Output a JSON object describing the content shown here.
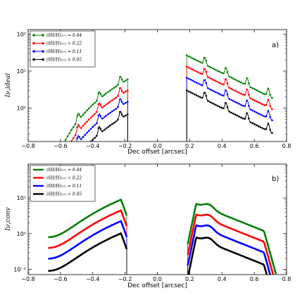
{
  "chart_data": [
    {
      "type": "line",
      "panel_label": "a)",
      "xlabel": "Dec offset [arcsec]",
      "ylabel": "Iν,ideal",
      "xlim": [
        -0.8,
        0.8
      ],
      "ylim_log10": [
        -0.9,
        2.12
      ],
      "yscale": "log",
      "grid": false,
      "legend_placement": "top-left",
      "x_ticks": [
        "−0.8",
        "−0.6",
        "−0.4",
        "−0.2",
        "0.0",
        "0.2",
        "0.4",
        "0.6",
        "0.8"
      ],
      "y_ticks": [
        "10⁰",
        "10¹",
        "10²"
      ],
      "markers": true,
      "series": [
        {
          "name": "(δH/H)₂₇₀ = 0.44",
          "color": "#007f00",
          "amp": 4.4
        },
        {
          "name": "(δH/H)₂₇₀ = 0.22",
          "color": "#ff0000",
          "amp": 2.2
        },
        {
          "name": "(δH/H)₂₇₀ = 0.11",
          "color": "#0000ff",
          "amp": 1.1
        },
        {
          "name": "(δH/H)₂₇₀ = 0.05",
          "color": "#000000",
          "amp": 0.5
        }
      ]
    },
    {
      "type": "line",
      "panel_label": "b)",
      "xlabel": "Dec offset [arcsec]",
      "ylabel": "Iν,conv",
      "xlim": [
        -0.8,
        0.8
      ],
      "ylim_log10": [
        -1.15,
        1.95
      ],
      "yscale": "log",
      "grid": false,
      "legend_placement": "top-left",
      "x_ticks": [
        "−0.8",
        "−0.6",
        "−0.4",
        "−0.2",
        "0.0",
        "0.2",
        "0.4",
        "0.6",
        "0.8"
      ],
      "y_ticks": [
        "10⁻¹",
        "10⁰",
        "10¹"
      ],
      "markers": false,
      "series": [
        {
          "name": "(δH/H)₂₇₀ = 0.44",
          "color": "#007f00",
          "amp": 4.4
        },
        {
          "name": "(δH/H)₂₇₀ = 0.22",
          "color": "#ff0000",
          "amp": 2.2
        },
        {
          "name": "(δH/H)₂₇₀ = 0.11",
          "color": "#0000ff",
          "amp": 1.1
        },
        {
          "name": "(δH/H)₂₇₀ = 0.05",
          "color": "#000000",
          "amp": 0.5
        }
      ]
    }
  ]
}
